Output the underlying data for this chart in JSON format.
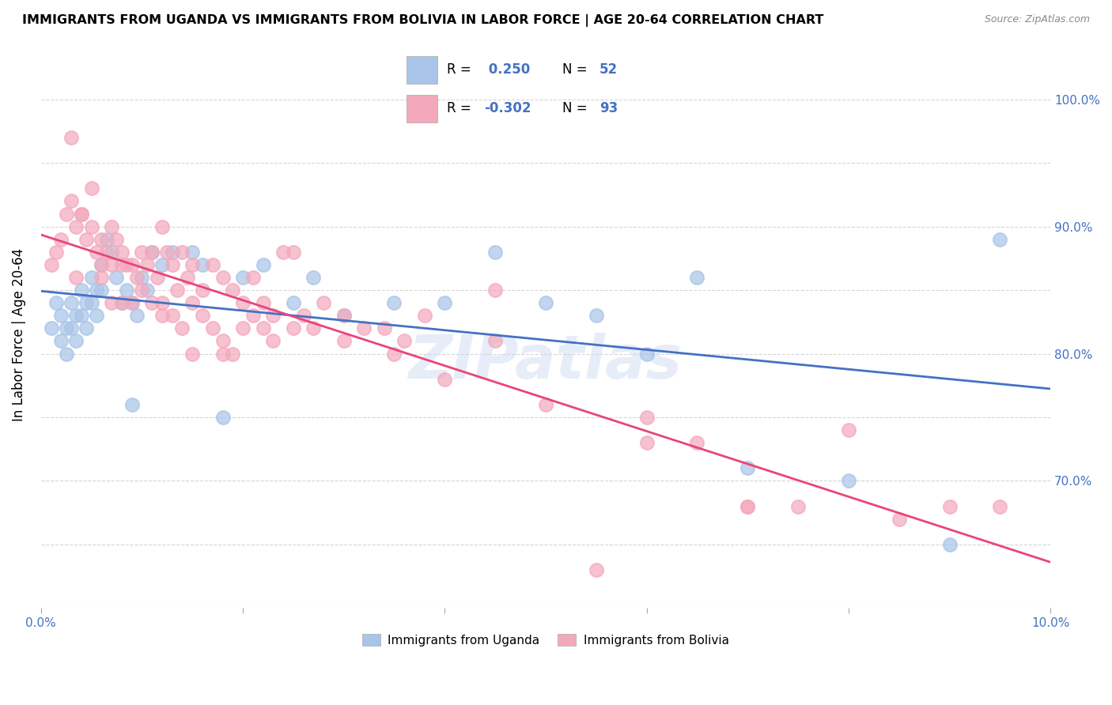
{
  "title": "IMMIGRANTS FROM UGANDA VS IMMIGRANTS FROM BOLIVIA IN LABOR FORCE | AGE 20-64 CORRELATION CHART",
  "source": "Source: ZipAtlas.com",
  "ylabel": "In Labor Force | Age 20-64",
  "xlim": [
    0.0,
    10.0
  ],
  "ylim": [
    60.0,
    103.0
  ],
  "uganda_color": "#a8c4e8",
  "bolivia_color": "#f4a8bc",
  "uganda_line_color": "#4472c4",
  "bolivia_line_color": "#e8457a",
  "legend_R_uganda": " 0.250",
  "legend_N_uganda": "52",
  "legend_R_bolivia": "-0.302",
  "legend_N_bolivia": "93",
  "watermark": "ZIPatlas",
  "uganda_x": [
    0.1,
    0.15,
    0.2,
    0.2,
    0.25,
    0.25,
    0.3,
    0.3,
    0.35,
    0.35,
    0.4,
    0.4,
    0.45,
    0.45,
    0.5,
    0.5,
    0.55,
    0.55,
    0.6,
    0.6,
    0.65,
    0.7,
    0.75,
    0.8,
    0.85,
    0.9,
    0.95,
    1.0,
    1.05,
    1.1,
    1.2,
    1.3,
    1.5,
    1.6,
    2.0,
    2.2,
    2.5,
    2.7,
    3.0,
    3.5,
    4.0,
    4.5,
    5.0,
    5.5,
    6.0,
    6.5,
    7.0,
    8.0,
    9.0,
    9.5,
    1.8,
    0.9
  ],
  "uganda_y": [
    82,
    84,
    83,
    81,
    82,
    80,
    84,
    82,
    83,
    81,
    85,
    83,
    84,
    82,
    86,
    84,
    85,
    83,
    87,
    85,
    89,
    88,
    86,
    84,
    85,
    84,
    83,
    86,
    85,
    88,
    87,
    88,
    88,
    87,
    86,
    87,
    84,
    86,
    83,
    84,
    84,
    88,
    84,
    83,
    80,
    86,
    71,
    70,
    65,
    89,
    75,
    76
  ],
  "bolivia_x": [
    0.1,
    0.15,
    0.2,
    0.25,
    0.3,
    0.35,
    0.4,
    0.45,
    0.5,
    0.55,
    0.6,
    0.65,
    0.7,
    0.75,
    0.8,
    0.85,
    0.9,
    0.95,
    1.0,
    1.05,
    1.1,
    1.15,
    1.2,
    1.25,
    1.3,
    1.35,
    1.4,
    1.45,
    1.5,
    1.6,
    1.7,
    1.8,
    1.9,
    2.0,
    2.1,
    2.2,
    2.3,
    2.4,
    2.5,
    2.6,
    2.7,
    2.8,
    3.0,
    3.2,
    3.4,
    3.6,
    3.8,
    4.0,
    4.5,
    5.0,
    5.5,
    6.0,
    6.5,
    7.0,
    7.5,
    8.0,
    8.5,
    9.0,
    9.5,
    0.3,
    0.4,
    0.5,
    0.6,
    0.7,
    0.8,
    0.9,
    1.0,
    1.1,
    1.2,
    1.3,
    1.4,
    1.5,
    1.6,
    1.7,
    1.8,
    1.9,
    2.0,
    2.1,
    2.2,
    2.3,
    2.5,
    3.0,
    3.5,
    4.5,
    6.0,
    7.0,
    0.35,
    0.6,
    0.7,
    0.8,
    1.2,
    1.5,
    1.8
  ],
  "bolivia_y": [
    87,
    88,
    89,
    91,
    92,
    90,
    91,
    89,
    90,
    88,
    89,
    88,
    90,
    89,
    88,
    87,
    87,
    86,
    88,
    87,
    88,
    86,
    90,
    88,
    87,
    85,
    88,
    86,
    87,
    85,
    87,
    86,
    85,
    82,
    86,
    84,
    83,
    88,
    88,
    83,
    82,
    84,
    83,
    82,
    82,
    81,
    83,
    78,
    85,
    76,
    63,
    73,
    73,
    68,
    68,
    74,
    67,
    68,
    68,
    97,
    91,
    93,
    86,
    87,
    87,
    84,
    85,
    84,
    83,
    83,
    82,
    84,
    83,
    82,
    81,
    80,
    84,
    83,
    82,
    81,
    82,
    81,
    80,
    81,
    75,
    68,
    86,
    87,
    84,
    84,
    84,
    80,
    80
  ]
}
